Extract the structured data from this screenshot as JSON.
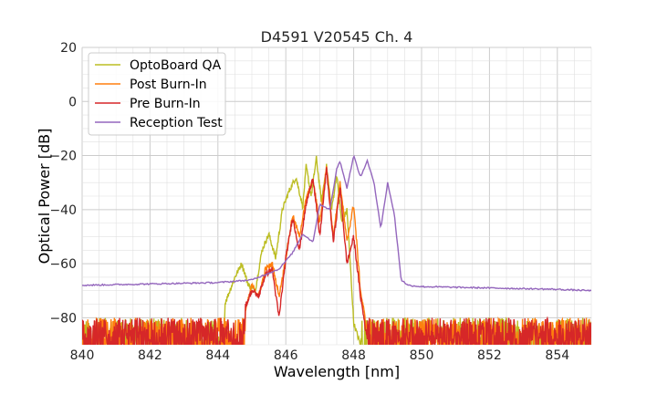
{
  "chart_data": {
    "type": "line",
    "title": "D4591 V20545 Ch. 4",
    "xlabel": "Wavelength [nm]",
    "ylabel": "Optical Power [dB]",
    "xlim": [
      840,
      855
    ],
    "ylim": [
      -90,
      20
    ],
    "xticks": [
      "840",
      "842",
      "844",
      "846",
      "848",
      "850",
      "852",
      "854"
    ],
    "yticks": [
      "20",
      "0",
      "−20",
      "−40",
      "−60",
      "−80"
    ],
    "grid": true,
    "legend": "top-left",
    "series": [
      {
        "name": "OptoBoard QA",
        "color": "#bcbd22",
        "noise_floor": -80,
        "x": [
          844.2,
          844.5,
          844.7,
          844.9,
          845.1,
          845.3,
          845.5,
          845.7,
          845.9,
          846.1,
          846.3,
          846.5,
          846.6,
          846.75,
          846.9,
          847.05,
          847.2,
          847.35,
          847.5,
          847.65,
          847.8,
          847.9,
          848.0,
          848.2
        ],
        "y": [
          -75,
          -65,
          -60,
          -68,
          -70,
          -55,
          -49,
          -58,
          -40,
          -33,
          -28,
          -39,
          -24,
          -35,
          -21,
          -37,
          -24,
          -40,
          -27,
          -45,
          -40,
          -60,
          -82,
          -90
        ]
      },
      {
        "name": "Post Burn-In",
        "color": "#ff7f0e",
        "noise_floor": -80,
        "x": [
          844.8,
          845.0,
          845.2,
          845.4,
          845.6,
          845.8,
          846.0,
          846.2,
          846.4,
          846.6,
          846.8,
          847.0,
          847.2,
          847.4,
          847.6,
          847.8,
          848.0,
          848.2,
          848.4
        ],
        "y": [
          -78,
          -68,
          -72,
          -62,
          -60,
          -72,
          -58,
          -42,
          -50,
          -36,
          -29,
          -45,
          -24,
          -50,
          -30,
          -52,
          -38,
          -70,
          -85
        ]
      },
      {
        "name": "Pre Burn-In",
        "color": "#d62728",
        "noise_floor": -80,
        "x": [
          844.8,
          845.0,
          845.2,
          845.4,
          845.6,
          845.8,
          846.0,
          846.2,
          846.4,
          846.6,
          846.8,
          847.0,
          847.2,
          847.4,
          847.6,
          847.8,
          848.0,
          848.2,
          848.4
        ],
        "y": [
          -76,
          -70,
          -72,
          -64,
          -62,
          -80,
          -58,
          -43,
          -55,
          -38,
          -28,
          -50,
          -25,
          -52,
          -32,
          -60,
          -50,
          -72,
          -88
        ]
      },
      {
        "name": "Reception Test",
        "color": "#9467bd",
        "x": [
          840,
          842,
          844,
          845,
          845.8,
          846.2,
          846.5,
          846.8,
          847.0,
          847.3,
          847.5,
          847.6,
          847.8,
          848.0,
          848.2,
          848.4,
          848.6,
          848.8,
          849.0,
          849.2,
          849.4,
          849.6,
          850,
          852,
          854,
          855
        ],
        "y": [
          -68,
          -67.5,
          -67,
          -66,
          -62,
          -56,
          -49,
          -52,
          -38,
          -40,
          -25,
          -22,
          -32,
          -20,
          -28,
          -22,
          -30,
          -47,
          -30,
          -42,
          -66,
          -68,
          -68.5,
          -69,
          -69.5,
          -70
        ]
      }
    ]
  }
}
